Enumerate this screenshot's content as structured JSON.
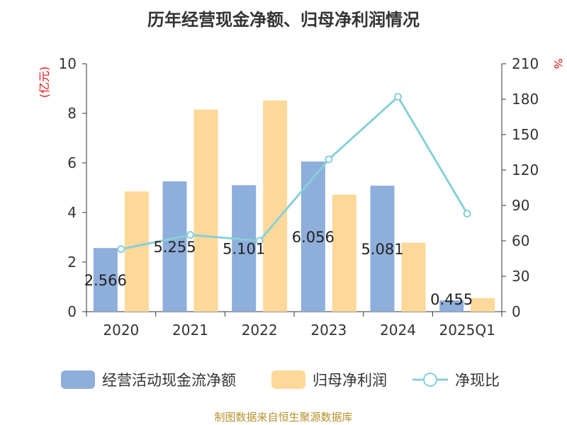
{
  "chart_data": {
    "type": "bar",
    "title": "历年经营现金净额、归母净利润情况",
    "categories": [
      "2020",
      "2021",
      "2022",
      "2023",
      "2024",
      "2025Q1"
    ],
    "y_left": {
      "unit": "(亿元)",
      "ylim": [
        0,
        10
      ],
      "ticks": [
        "0",
        "2",
        "4",
        "6",
        "8",
        "10"
      ]
    },
    "y_right": {
      "unit": "%",
      "ylim": [
        0,
        210
      ],
      "ticks": [
        "0",
        "30",
        "60",
        "90",
        "120",
        "150",
        "180",
        "210"
      ]
    },
    "series": [
      {
        "name": "经营活动现金流净额",
        "kind": "bar",
        "axis": "left",
        "color": "#8eaedb",
        "values": [
          2.566,
          5.255,
          5.101,
          6.056,
          5.081,
          0.455
        ],
        "labels": [
          "2.566",
          "5.255",
          "5.101",
          "6.056",
          "5.081",
          "0.455"
        ]
      },
      {
        "name": "归母净利润",
        "kind": "bar",
        "axis": "left",
        "color": "#fdd899",
        "values": [
          4.85,
          8.15,
          8.52,
          4.72,
          2.78,
          0.55
        ]
      },
      {
        "name": "净现比",
        "kind": "line",
        "axis": "right",
        "color": "#86d0d8",
        "values": [
          53,
          65,
          60,
          129,
          182,
          83
        ]
      }
    ],
    "legend": "bottom",
    "grid": false
  },
  "source_note": "制图数据来自恒生聚源数据库"
}
